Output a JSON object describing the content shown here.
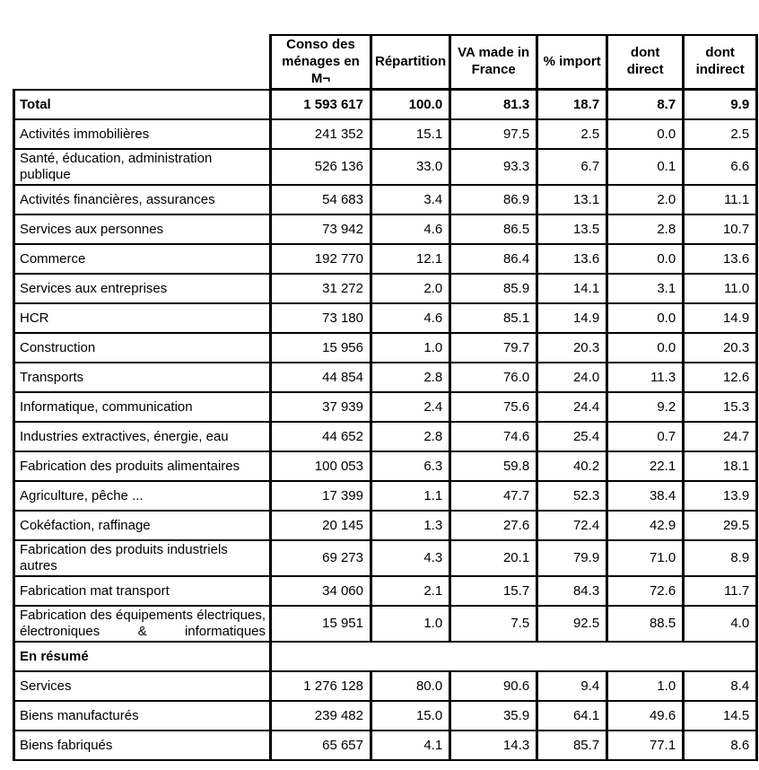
{
  "table": {
    "columns": [
      "Conso des ménages en M¬",
      "Répartition",
      "VA made in France",
      "% import",
      "dont direct",
      "dont indirect"
    ],
    "rows": [
      {
        "label": "Total",
        "bold": true,
        "values": [
          "1 593 617",
          "100.0",
          "81.3",
          "18.7",
          "8.7",
          "9.9"
        ]
      },
      {
        "label": "Activités immobilières",
        "values": [
          "241 352",
          "15.1",
          "97.5",
          "2.5",
          "0.0",
          "2.5"
        ]
      },
      {
        "label": "Santé, éducation, administration publique",
        "values": [
          "526 136",
          "33.0",
          "93.3",
          "6.7",
          "0.1",
          "6.6"
        ]
      },
      {
        "label": "Activités financières, assurances",
        "values": [
          "54 683",
          "3.4",
          "86.9",
          "13.1",
          "2.0",
          "11.1"
        ]
      },
      {
        "label": "Services aux personnes",
        "values": [
          "73 942",
          "4.6",
          "86.5",
          "13.5",
          "2.8",
          "10.7"
        ]
      },
      {
        "label": "Commerce",
        "values": [
          "192 770",
          "12.1",
          "86.4",
          "13.6",
          "0.0",
          "13.6"
        ]
      },
      {
        "label": "Services aux entreprises",
        "values": [
          "31 272",
          "2.0",
          "85.9",
          "14.1",
          "3.1",
          "11.0"
        ]
      },
      {
        "label": "HCR",
        "values": [
          "73 180",
          "4.6",
          "85.1",
          "14.9",
          "0.0",
          "14.9"
        ]
      },
      {
        "label": "Construction",
        "values": [
          "15 956",
          "1.0",
          "79.7",
          "20.3",
          "0.0",
          "20.3"
        ]
      },
      {
        "label": "Transports",
        "values": [
          "44 854",
          "2.8",
          "76.0",
          "24.0",
          "11.3",
          "12.6"
        ]
      },
      {
        "label": "Informatique, communication",
        "values": [
          "37 939",
          "2.4",
          "75.6",
          "24.4",
          "9.2",
          "15.3"
        ]
      },
      {
        "label": "Industries extractives, énergie, eau",
        "values": [
          "44 652",
          "2.8",
          "74.6",
          "25.4",
          "0.7",
          "24.7"
        ]
      },
      {
        "label": "Fabrication des produits alimentaires",
        "values": [
          "100 053",
          "6.3",
          "59.8",
          "40.2",
          "22.1",
          "18.1"
        ]
      },
      {
        "label": "Agriculture, pêche ...",
        "values": [
          "17 399",
          "1.1",
          "47.7",
          "52.3",
          "38.4",
          "13.9"
        ]
      },
      {
        "label": "Cokéfaction, raffinage",
        "values": [
          "20 145",
          "1.3",
          "27.6",
          "72.4",
          "42.9",
          "29.5"
        ]
      },
      {
        "label": "Fabrication des produits industriels autres",
        "values": [
          "69 273",
          "4.3",
          "20.1",
          "79.9",
          "71.0",
          "8.9"
        ]
      },
      {
        "label": "Fabrication mat transport",
        "values": [
          "34 060",
          "2.1",
          "15.7",
          "84.3",
          "72.6",
          "11.7"
        ]
      },
      {
        "label": "Fabrication des équipements électriques, électroniques & informatiques",
        "justify": true,
        "values": [
          "15 951",
          "1.0",
          "7.5",
          "92.5",
          "88.5",
          "4.0"
        ]
      },
      {
        "label": "En résumé",
        "bold": true,
        "section": true,
        "values": []
      },
      {
        "label": "Services",
        "values": [
          "1 276 128",
          "80.0",
          "90.6",
          "9.4",
          "1.0",
          "8.4"
        ]
      },
      {
        "label": "Biens manufacturés",
        "values": [
          "239 482",
          "15.0",
          "35.9",
          "64.1",
          "49.6",
          "14.5"
        ]
      },
      {
        "label": "Biens fabriqués",
        "values": [
          "65 657",
          "4.1",
          "14.3",
          "85.7",
          "77.1",
          "8.6"
        ]
      }
    ]
  }
}
